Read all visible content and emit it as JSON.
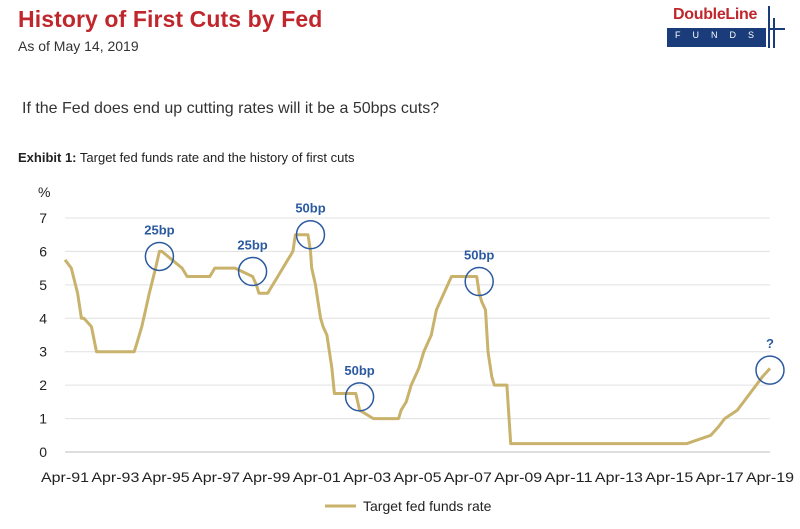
{
  "header": {
    "title": "History of First Cuts by Fed",
    "subtitle": "As of May 14, 2019",
    "logo_top": "DoubleLine",
    "logo_bottom": "FUNDS"
  },
  "question": "If the Fed does end up cutting rates will it be a 50bps cuts?",
  "exhibit": {
    "label": "Exhibit 1:",
    "text": "Target fed funds rate and the history of first cuts"
  },
  "colors": {
    "line": "#c9b26b",
    "circle": "#2c5aa0",
    "annotation": "#2c5aa0",
    "grid": "#e0e0e0",
    "title": "#c0272d"
  },
  "chart_data": {
    "type": "line",
    "ylabel": "%",
    "ylim": [
      0,
      7
    ],
    "yticks": [
      "0",
      "1",
      "2",
      "3",
      "4",
      "5",
      "6",
      "7"
    ],
    "xtick_labels": [
      "Apr-91",
      "Apr-93",
      "Apr-95",
      "Apr-97",
      "Apr-99",
      "Apr-01",
      "Apr-03",
      "Apr-05",
      "Apr-07",
      "Apr-09",
      "Apr-11",
      "Apr-13",
      "Apr-15",
      "Apr-17",
      "Apr-19"
    ],
    "xtick_years": [
      1991.25,
      1993.25,
      1995.25,
      1997.25,
      1999.25,
      2001.25,
      2003.25,
      2005.25,
      2007.25,
      2009.25,
      2011.25,
      2013.25,
      2015.25,
      2017.25,
      2019.25
    ],
    "xlim": [
      1991.25,
      2019.25
    ],
    "grid": true,
    "legend_position": "bottom",
    "series": [
      {
        "name": "Target fed funds rate",
        "x": [
          1991.25,
          1991.5,
          1991.75,
          1991.9,
          1992.0,
          1992.3,
          1992.5,
          1993.0,
          1994.0,
          1994.1,
          1994.3,
          1994.45,
          1994.6,
          1994.85,
          1995.0,
          1995.1,
          1995.5,
          1995.9,
          1996.1,
          1996.5,
          1997.0,
          1997.2,
          1998.0,
          1998.7,
          1998.85,
          1998.95,
          1999.3,
          1999.5,
          1999.7,
          1999.9,
          2000.1,
          2000.3,
          2000.4,
          2000.9,
          2001.0,
          2001.05,
          2001.2,
          2001.3,
          2001.4,
          2001.5,
          2001.65,
          2001.75,
          2001.85,
          2001.95,
          2002.8,
          2002.95,
          2003.5,
          2004.5,
          2004.6,
          2004.8,
          2005.0,
          2005.3,
          2005.5,
          2005.8,
          2006.0,
          2006.3,
          2006.6,
          2007.6,
          2007.7,
          2007.8,
          2007.95,
          2008.05,
          2008.2,
          2008.3,
          2008.8,
          2008.95,
          2015.95,
          2016.9,
          2017.2,
          2017.45,
          2017.95,
          2018.2,
          2018.45,
          2018.7,
          2018.95,
          2019.25
        ],
        "y": [
          5.75,
          5.5,
          4.75,
          4.0,
          4.0,
          3.75,
          3.0,
          3.0,
          3.0,
          3.25,
          3.75,
          4.25,
          4.75,
          5.5,
          6.0,
          6.0,
          5.75,
          5.5,
          5.25,
          5.25,
          5.25,
          5.5,
          5.5,
          5.25,
          5.0,
          4.75,
          4.75,
          5.0,
          5.25,
          5.5,
          5.75,
          6.0,
          6.5,
          6.5,
          6.0,
          5.5,
          5.0,
          4.5,
          4.0,
          3.75,
          3.5,
          3.0,
          2.5,
          1.75,
          1.75,
          1.25,
          1.0,
          1.0,
          1.25,
          1.5,
          2.0,
          2.5,
          3.0,
          3.5,
          4.25,
          4.75,
          5.25,
          5.25,
          4.75,
          4.5,
          4.25,
          3.0,
          2.25,
          2.0,
          2.0,
          0.25,
          0.25,
          0.5,
          0.75,
          1.0,
          1.25,
          1.5,
          1.75,
          2.0,
          2.25,
          2.5
        ]
      }
    ],
    "annotations": [
      {
        "label": "25bp",
        "x": 1995.0,
        "y": 5.85
      },
      {
        "label": "25bp",
        "x": 1998.7,
        "y": 5.4
      },
      {
        "label": "50bp",
        "x": 2001.0,
        "y": 6.5
      },
      {
        "label": "50bp",
        "x": 2002.95,
        "y": 1.65
      },
      {
        "label": "50bp",
        "x": 2007.7,
        "y": 5.1
      },
      {
        "label": "?",
        "x": 2019.25,
        "y": 2.45
      }
    ]
  }
}
